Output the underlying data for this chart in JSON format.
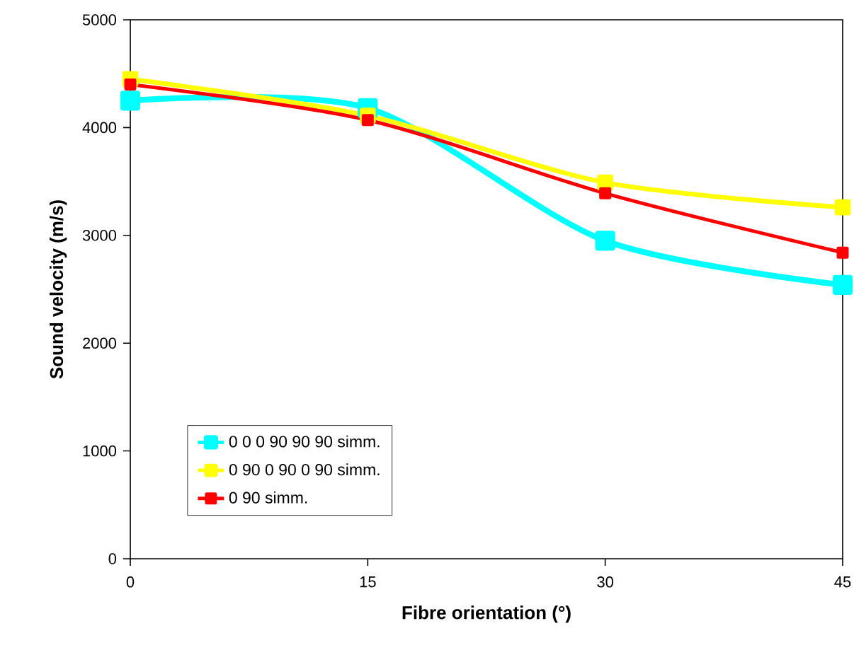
{
  "chart_data": {
    "type": "line",
    "xlabel": "Fibre orientation (°)",
    "ylabel": "Sound velocity (m/s)",
    "x": [
      0,
      15,
      30,
      45
    ],
    "series": [
      {
        "name": "0 0 0 90 90 90 simm.",
        "color": "#00ffff",
        "values": [
          4250,
          4180,
          2950,
          2540
        ]
      },
      {
        "name": "0 90 0 90 0 90 simm.",
        "color": "#ffff00",
        "values": [
          4450,
          4110,
          3490,
          3260
        ]
      },
      {
        "name": "0 90 simm.",
        "color": "#ff0000",
        "values": [
          4400,
          4070,
          3390,
          2840
        ]
      }
    ],
    "xlim": [
      0,
      45
    ],
    "xticks": [
      0,
      15,
      30,
      45
    ],
    "ylim": [
      0,
      5000
    ],
    "yticks": [
      0,
      1000,
      2000,
      3000,
      4000,
      5000
    ],
    "grid": false,
    "legend": "bottom left",
    "marker": "square",
    "line_style": "solid"
  }
}
